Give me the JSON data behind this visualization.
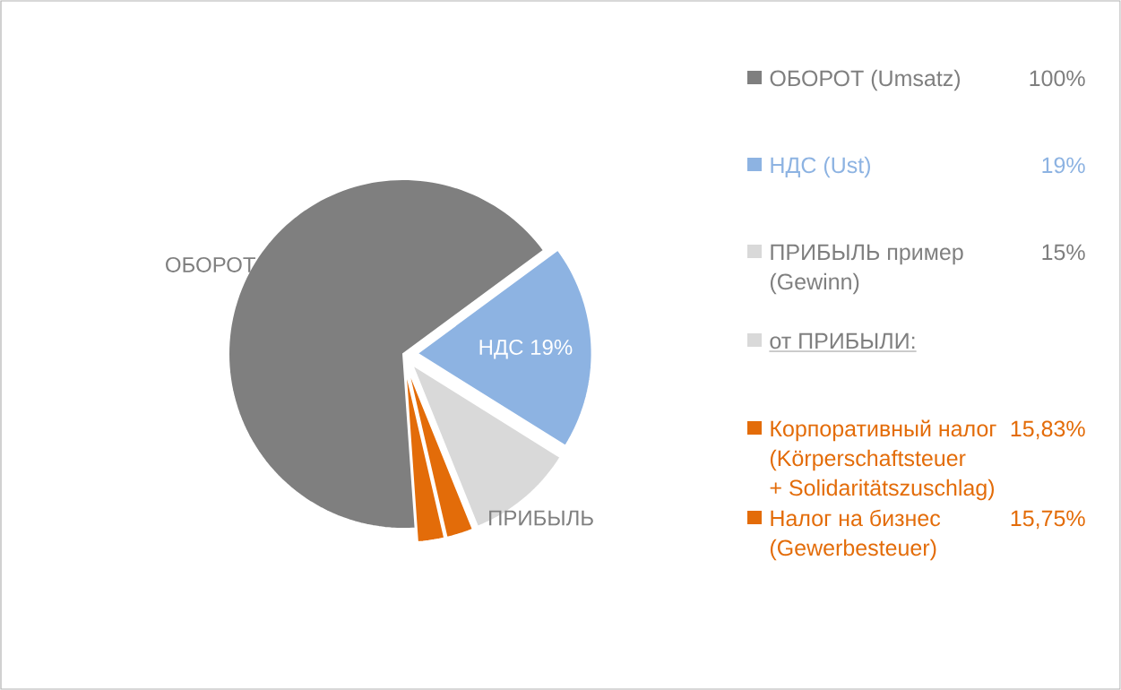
{
  "chart_data": {
    "type": "pie",
    "categories": [
      "ОБОРОТ",
      "НДС",
      "ПРИБЫЛЬ",
      null,
      null
    ],
    "values": [
      66,
      19,
      10,
      2.5,
      2.5
    ],
    "value_labels": [
      null,
      "19%",
      null,
      null,
      null
    ],
    "colors": [
      "#7f7f7f",
      "#8db3e2",
      "#d9d9d9",
      "#e36c09",
      "#e36c09"
    ],
    "annotations": [
      "ОБОРОТ (Umsatz)",
      "100%",
      "НДС (Ust)",
      "19%",
      "ПРИБЫЛЬ пример",
      "(Gewinn)",
      "15%",
      "от ПРИБЫЛИ:",
      "Корпоративный налог",
      "(Körperschaftsteuer",
      "+ Solidaritätszuschlag)",
      "15,83%",
      "Налог на бизнес",
      "(Gewerbesteuer)",
      "15,75%"
    ]
  }
}
